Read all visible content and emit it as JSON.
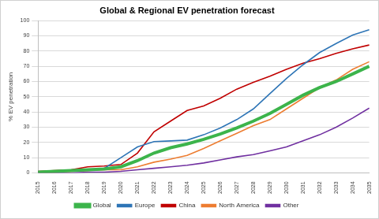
{
  "chart_data": {
    "type": "line",
    "title": "Global & Regional EV penetration forecast",
    "y_label": "% EV penetration",
    "categories": [
      "2015",
      "2016",
      "2017",
      "2018",
      "2019",
      "2020",
      "2021",
      "2022",
      "2023",
      "2024",
      "2025",
      "2026",
      "2027",
      "2028",
      "2029",
      "2030",
      "2031",
      "2032",
      "2033",
      "2034",
      "2035"
    ],
    "series": [
      {
        "name": "Global",
        "color": "#3cb44b",
        "values": [
          0.5,
          1,
          1.5,
          2,
          2.5,
          4,
          8,
          13,
          16.5,
          19,
          22,
          25.5,
          29.5,
          34,
          39,
          45,
          51,
          56,
          60,
          65,
          70
        ]
      },
      {
        "name": "Europe",
        "color": "#2e75b6",
        "values": [
          0.5,
          1,
          1.5,
          2,
          3,
          10,
          17,
          20.5,
          21,
          21.5,
          25,
          29.5,
          35,
          42,
          52,
          62,
          71,
          79,
          85,
          90.5,
          94
        ]
      },
      {
        "name": "China",
        "color": "#c00000",
        "values": [
          1,
          1.5,
          2,
          4,
          4.5,
          5.5,
          13,
          27,
          34,
          41,
          44,
          49,
          55,
          59.5,
          63.5,
          68,
          72,
          75,
          78.5,
          81.5,
          84
        ]
      },
      {
        "name": "North America",
        "color": "#ed7d31",
        "values": [
          0.5,
          0.5,
          1,
          1.5,
          2,
          2,
          4,
          7,
          9,
          11.5,
          16,
          21,
          26,
          31,
          35,
          42,
          49,
          56,
          61,
          68,
          73
        ]
      },
      {
        "name": "Other",
        "color": "#7030a0",
        "values": [
          0,
          0,
          0,
          0.5,
          0.5,
          1,
          2,
          3,
          4,
          5,
          6.5,
          8.5,
          10.5,
          12,
          14.5,
          17,
          21,
          25,
          30,
          36,
          42.5
        ]
      }
    ],
    "ylim": [
      0,
      100
    ],
    "yticks": [
      0,
      10,
      20,
      30,
      40,
      50,
      60,
      70,
      80,
      90,
      100
    ],
    "grid": true,
    "legend": "bottom"
  }
}
